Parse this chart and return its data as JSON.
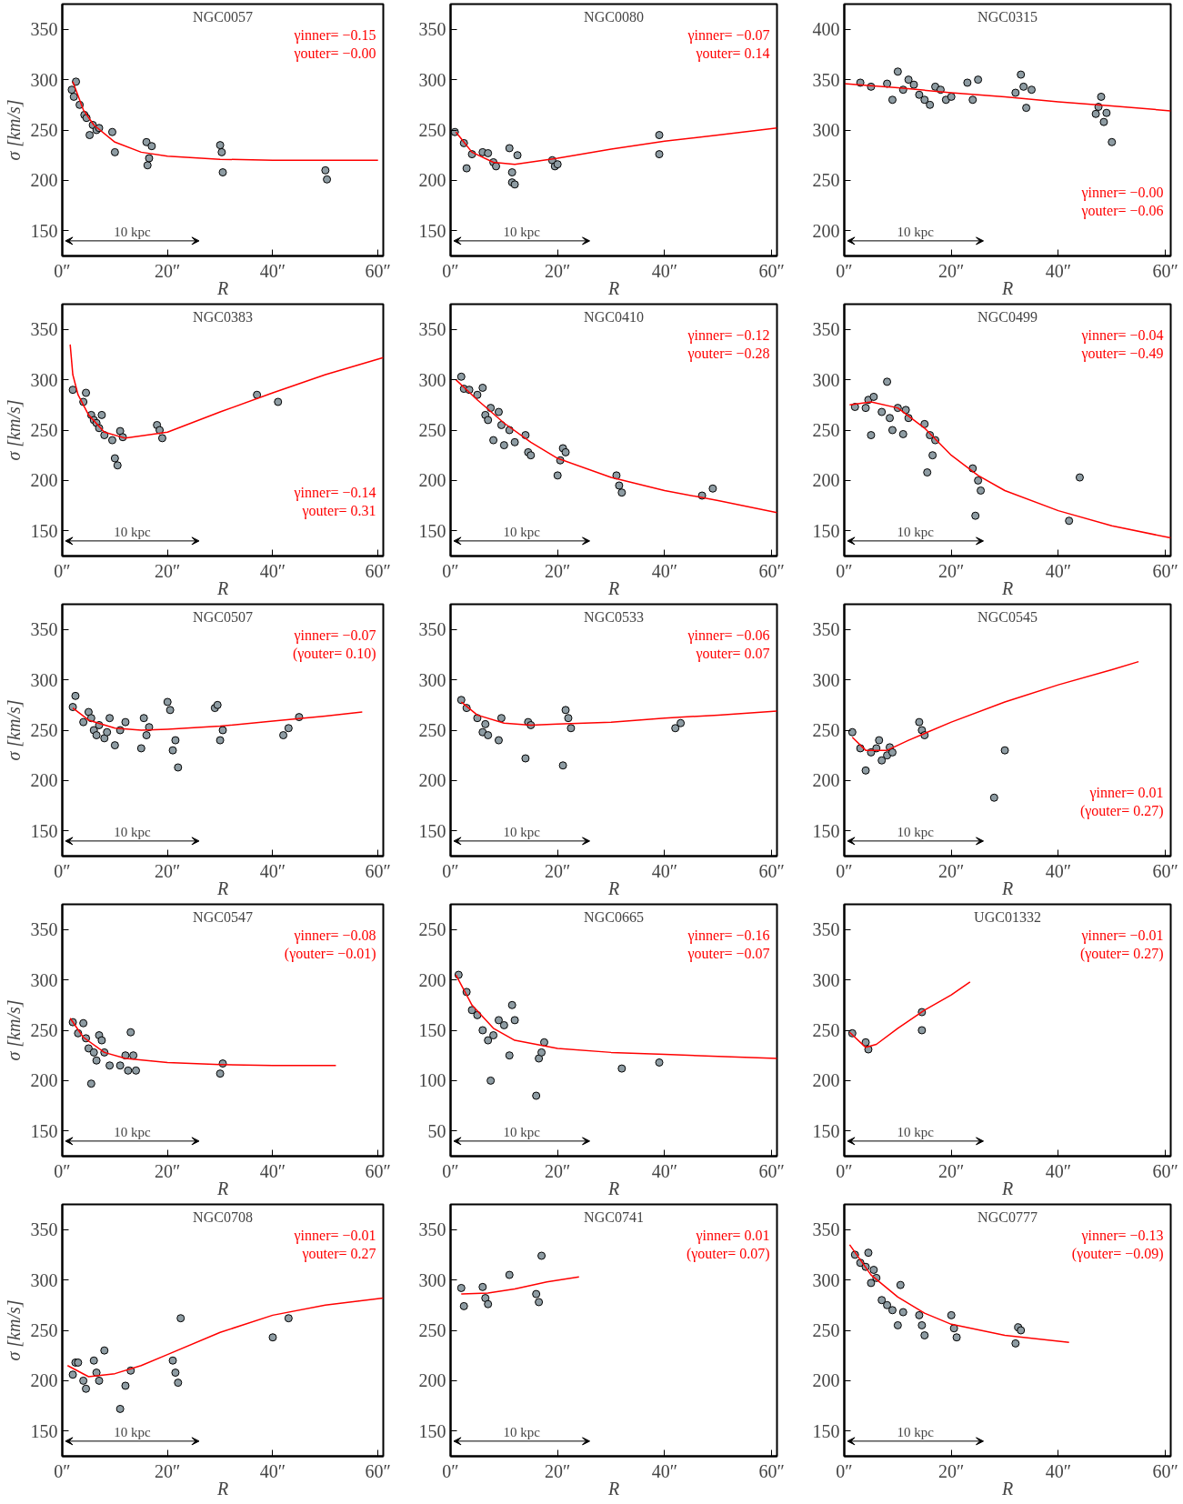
{
  "chart_data": [
    {
      "type": "scatter",
      "title": "NGC0057",
      "xlabel": "R",
      "ylabel": "σ [km/s]",
      "xlim": [
        0,
        61
      ],
      "ylim": [
        125,
        375
      ],
      "xticks": [
        {
          "value": 0,
          "label": "0″"
        },
        {
          "value": 20,
          "label": "20″"
        },
        {
          "value": 40,
          "label": "40″"
        },
        {
          "value": 60,
          "label": "60″"
        }
      ],
      "yticks": [
        150,
        200,
        250,
        300,
        350
      ],
      "grid": false,
      "series": [
        {
          "marker": "circle",
          "color": "#8e9ca3",
          "x": [
            1.8,
            2.2,
            2.6,
            3.3,
            4.2,
            4.6,
            5.2,
            5.8,
            6.5,
            7,
            9.5,
            10,
            16,
            16.2,
            16.5,
            17,
            30,
            30.3,
            30.5,
            50,
            50.3
          ],
          "values": [
            290,
            283,
            298,
            275,
            265,
            262,
            245,
            255,
            250,
            252,
            248,
            228,
            238,
            215,
            222,
            234,
            235,
            228,
            208,
            210,
            201
          ]
        },
        {
          "type": "line",
          "color": "#ff0000",
          "x": [
            2,
            4,
            6,
            10,
            15,
            20,
            30,
            40,
            60
          ],
          "values": [
            298,
            270,
            255,
            238,
            228,
            224,
            221,
            220,
            220
          ]
        }
      ],
      "annotations": [
        "γinner= −0.15",
        "γouter= −0.00",
        "10 kpc"
      ]
    },
    {
      "type": "scatter",
      "title": "NGC0080",
      "xlim": [
        0,
        61
      ],
      "ylim": [
        125,
        375
      ],
      "xlabel": "R",
      "xticks": [
        {
          "value": 0,
          "label": "0″"
        },
        {
          "value": 20,
          "label": "20″"
        },
        {
          "value": 40,
          "label": "40″"
        },
        {
          "value": 60,
          "label": "60″"
        }
      ],
      "yticks": [
        150,
        200,
        250,
        300,
        350
      ],
      "grid": false,
      "series": [
        {
          "marker": "circle",
          "color": "#8e9ca3",
          "x": [
            0.8,
            2.5,
            3,
            4,
            6,
            7,
            8,
            8.5,
            11,
            11.5,
            11.5,
            12,
            12.5,
            19,
            19.5,
            20,
            39,
            39
          ],
          "values": [
            248,
            237,
            212,
            226,
            228,
            227,
            218,
            214,
            232,
            208,
            198,
            196,
            225,
            220,
            214,
            216,
            245,
            226
          ]
        },
        {
          "type": "line",
          "color": "#ff0000",
          "x": [
            1,
            4,
            8,
            12,
            20,
            30,
            40,
            50,
            61
          ],
          "values": [
            248,
            228,
            218,
            216,
            222,
            231,
            239,
            245,
            252
          ]
        }
      ],
      "annotations": [
        "γinner= −0.07",
        "γouter= 0.14",
        "10 kpc"
      ]
    },
    {
      "type": "scatter",
      "title": "NGC0315",
      "xlim": [
        0,
        61
      ],
      "ylim": [
        175,
        425
      ],
      "xlabel": "R",
      "xticks": [
        {
          "value": 0,
          "label": "0″"
        },
        {
          "value": 20,
          "label": "20″"
        },
        {
          "value": 40,
          "label": "40″"
        },
        {
          "value": 60,
          "label": "60″"
        }
      ],
      "yticks": [
        200,
        250,
        300,
        350,
        400
      ],
      "grid": false,
      "series": [
        {
          "marker": "circle",
          "color": "#8e9ca3",
          "x": [
            3,
            5,
            8,
            9,
            10,
            11,
            12,
            13,
            14,
            15,
            16,
            17,
            18,
            19,
            20,
            23,
            24,
            25,
            32,
            33,
            33.5,
            34,
            35,
            47,
            47.5,
            48,
            48.5,
            49,
            50
          ],
          "values": [
            347,
            343,
            346,
            330,
            358,
            340,
            350,
            345,
            335,
            330,
            325,
            343,
            340,
            330,
            333,
            347,
            330,
            350,
            337,
            355,
            343,
            322,
            340,
            316,
            323,
            333,
            308,
            317,
            288
          ]
        },
        {
          "type": "line",
          "color": "#ff0000",
          "x": [
            0,
            10,
            20,
            30,
            40,
            50,
            61
          ],
          "values": [
            346,
            342,
            337,
            333,
            328,
            324,
            319
          ]
        }
      ],
      "annotations": [
        "γinner= −0.00",
        "γouter= −0.06",
        "10 kpc"
      ]
    },
    {
      "type": "scatter",
      "title": "NGC0383",
      "xlabel": "R",
      "ylabel": "σ [km/s]",
      "xlim": [
        0,
        61
      ],
      "ylim": [
        125,
        375
      ],
      "xticks": [
        {
          "value": 0,
          "label": "0″"
        },
        {
          "value": 20,
          "label": "20″"
        },
        {
          "value": 40,
          "label": "40″"
        },
        {
          "value": 60,
          "label": "60″"
        }
      ],
      "yticks": [
        150,
        200,
        250,
        300,
        350
      ],
      "grid": false,
      "series": [
        {
          "marker": "circle",
          "color": "#8e9ca3",
          "x": [
            2,
            4,
            4.5,
            5.5,
            6,
            6.5,
            7,
            7.5,
            8,
            9.5,
            10,
            10.5,
            11,
            11.5,
            18,
            18.5,
            19,
            37,
            41
          ],
          "values": [
            290,
            278,
            287,
            265,
            260,
            257,
            252,
            265,
            245,
            240,
            222,
            215,
            249,
            243,
            255,
            250,
            242,
            285,
            278
          ]
        },
        {
          "type": "line",
          "color": "#ff0000",
          "x": [
            1.5,
            2,
            3,
            5,
            8,
            12,
            20,
            30,
            40,
            50,
            61
          ],
          "values": [
            335,
            305,
            285,
            265,
            248,
            242,
            248,
            268,
            287,
            305,
            322
          ]
        }
      ],
      "annotations": [
        "γinner= −0.14",
        "γouter= 0.31",
        "10 kpc"
      ]
    },
    {
      "type": "scatter",
      "title": "NGC0410",
      "xlabel": "R",
      "xlim": [
        0,
        61
      ],
      "ylim": [
        125,
        375
      ],
      "xticks": [
        {
          "value": 0,
          "label": "0″"
        },
        {
          "value": 20,
          "label": "20″"
        },
        {
          "value": 40,
          "label": "40″"
        },
        {
          "value": 60,
          "label": "60″"
        }
      ],
      "yticks": [
        150,
        200,
        250,
        300,
        350
      ],
      "grid": false,
      "series": [
        {
          "marker": "circle",
          "color": "#8e9ca3",
          "x": [
            2,
            2.5,
            3.5,
            5,
            6,
            6.5,
            7,
            7.5,
            8,
            9,
            9.5,
            10,
            11,
            12,
            14,
            14.5,
            15,
            20,
            20.5,
            21,
            21.5,
            31,
            31.5,
            32,
            47,
            49
          ],
          "values": [
            303,
            291,
            290,
            285,
            292,
            265,
            260,
            272,
            240,
            268,
            255,
            235,
            250,
            238,
            245,
            228,
            225,
            205,
            220,
            232,
            228,
            205,
            195,
            188,
            185,
            192
          ]
        },
        {
          "type": "line",
          "color": "#ff0000",
          "x": [
            1,
            5,
            10,
            15,
            20,
            30,
            40,
            50,
            61
          ],
          "values": [
            300,
            280,
            257,
            238,
            222,
            203,
            190,
            180,
            168
          ]
        }
      ],
      "annotations": [
        "γinner= −0.12",
        "γouter= −0.28",
        "10 kpc"
      ]
    },
    {
      "type": "scatter",
      "title": "NGC0499",
      "xlabel": "R",
      "xlim": [
        0,
        61
      ],
      "ylim": [
        125,
        375
      ],
      "xticks": [
        {
          "value": 0,
          "label": "0″"
        },
        {
          "value": 20,
          "label": "20″"
        },
        {
          "value": 40,
          "label": "40″"
        },
        {
          "value": 60,
          "label": "60″"
        }
      ],
      "yticks": [
        150,
        200,
        250,
        300,
        350
      ],
      "grid": false,
      "series": [
        {
          "marker": "circle",
          "color": "#8e9ca3",
          "x": [
            2,
            4,
            4.5,
            5,
            5.5,
            7,
            8,
            8.5,
            9,
            10,
            11,
            11.5,
            12,
            15,
            15.5,
            16,
            16.5,
            17,
            24,
            24.5,
            25,
            25.5,
            42,
            44
          ],
          "values": [
            273,
            272,
            280,
            245,
            283,
            268,
            298,
            262,
            250,
            272,
            246,
            270,
            262,
            256,
            208,
            245,
            225,
            240,
            212,
            165,
            200,
            190,
            160,
            203
          ]
        },
        {
          "type": "line",
          "color": "#ff0000",
          "x": [
            1,
            5,
            10,
            15,
            20,
            25,
            30,
            40,
            50,
            61
          ],
          "values": [
            275,
            278,
            272,
            252,
            225,
            205,
            190,
            170,
            155,
            143
          ]
        }
      ],
      "annotations": [
        "γinner= −0.04",
        "γouter= −0.49",
        "10 kpc"
      ]
    },
    {
      "type": "scatter",
      "title": "NGC0507",
      "xlabel": "R",
      "ylabel": "σ [km/s]",
      "xlim": [
        0,
        61
      ],
      "ylim": [
        125,
        375
      ],
      "xticks": [
        {
          "value": 0,
          "label": "0″"
        },
        {
          "value": 20,
          "label": "20″"
        },
        {
          "value": 40,
          "label": "40″"
        },
        {
          "value": 60,
          "label": "60″"
        }
      ],
      "yticks": [
        150,
        200,
        250,
        300,
        350
      ],
      "grid": false,
      "series": [
        {
          "marker": "circle",
          "color": "#8e9ca3",
          "x": [
            2,
            2.5,
            4,
            5,
            5.5,
            6,
            6.5,
            7,
            8,
            8.5,
            9,
            10,
            11,
            12,
            15,
            15.5,
            16,
            16.5,
            20,
            20.5,
            21,
            21.5,
            22,
            29,
            29.5,
            30,
            30.5,
            42,
            43,
            45
          ],
          "values": [
            273,
            284,
            258,
            268,
            262,
            250,
            245,
            255,
            242,
            248,
            262,
            235,
            250,
            258,
            232,
            262,
            245,
            253,
            278,
            270,
            230,
            240,
            213,
            272,
            275,
            240,
            250,
            245,
            252,
            263
          ]
        },
        {
          "type": "line",
          "color": "#ff0000",
          "x": [
            2,
            5,
            10,
            15,
            20,
            30,
            40,
            50,
            57
          ],
          "values": [
            272,
            260,
            252,
            250,
            251,
            254,
            259,
            264,
            268
          ]
        }
      ],
      "annotations": [
        "γinner= −0.07",
        "(γouter= 0.10)",
        "10 kpc"
      ]
    },
    {
      "type": "scatter",
      "title": "NGC0533",
      "xlabel": "R",
      "xlim": [
        0,
        61
      ],
      "ylim": [
        125,
        375
      ],
      "xticks": [
        {
          "value": 0,
          "label": "0″"
        },
        {
          "value": 20,
          "label": "20″"
        },
        {
          "value": 40,
          "label": "40″"
        },
        {
          "value": 60,
          "label": "60″"
        }
      ],
      "yticks": [
        150,
        200,
        250,
        300,
        350
      ],
      "grid": false,
      "series": [
        {
          "marker": "circle",
          "color": "#8e9ca3",
          "x": [
            2,
            3,
            5,
            6,
            6.5,
            7,
            9,
            9.5,
            14,
            14.5,
            15,
            21,
            21.5,
            22,
            22.5,
            42,
            43
          ],
          "values": [
            280,
            272,
            262,
            248,
            256,
            245,
            240,
            262,
            222,
            258,
            255,
            215,
            270,
            262,
            252,
            252,
            257
          ]
        },
        {
          "type": "line",
          "color": "#ff0000",
          "x": [
            2,
            5,
            10,
            15,
            20,
            30,
            40,
            50,
            61
          ],
          "values": [
            278,
            265,
            257,
            255,
            256,
            258,
            262,
            265,
            269
          ]
        }
      ],
      "annotations": [
        "γinner= −0.06",
        "γouter= 0.07",
        "10 kpc"
      ]
    },
    {
      "type": "scatter",
      "title": "NGC0545",
      "xlabel": "R",
      "xlim": [
        0,
        61
      ],
      "ylim": [
        125,
        375
      ],
      "xticks": [
        {
          "value": 0,
          "label": "0″"
        },
        {
          "value": 20,
          "label": "20″"
        },
        {
          "value": 40,
          "label": "40″"
        },
        {
          "value": 60,
          "label": "60″"
        }
      ],
      "yticks": [
        150,
        200,
        250,
        300,
        350
      ],
      "grid": false,
      "series": [
        {
          "marker": "circle",
          "color": "#8e9ca3",
          "x": [
            1.5,
            3,
            4,
            5,
            6,
            6.5,
            7,
            8,
            8.5,
            9,
            14,
            14.5,
            15,
            28,
            30
          ],
          "values": [
            248,
            232,
            210,
            228,
            232,
            240,
            220,
            225,
            233,
            228,
            258,
            250,
            245,
            183,
            230
          ]
        },
        {
          "type": "line",
          "color": "#ff0000",
          "x": [
            1.5,
            4,
            8,
            12,
            20,
            30,
            40,
            50,
            55
          ],
          "values": [
            243,
            230,
            230,
            240,
            258,
            278,
            295,
            310,
            318
          ]
        }
      ],
      "annotations": [
        "γinner= 0.01",
        "(γouter= 0.27)",
        "10 kpc"
      ]
    },
    {
      "type": "scatter",
      "title": "NGC0547",
      "xlabel": "R",
      "ylabel": "σ [km/s]",
      "xlim": [
        0,
        61
      ],
      "ylim": [
        125,
        375
      ],
      "xticks": [
        {
          "value": 0,
          "label": "0″"
        },
        {
          "value": 20,
          "label": "20″"
        },
        {
          "value": 40,
          "label": "40″"
        },
        {
          "value": 60,
          "label": "60″"
        }
      ],
      "yticks": [
        150,
        200,
        250,
        300,
        350
      ],
      "grid": false,
      "series": [
        {
          "marker": "circle",
          "color": "#8e9ca3",
          "x": [
            2,
            3,
            4,
            4.5,
            5,
            5.5,
            6,
            6.5,
            7,
            7.5,
            8,
            9,
            11,
            12,
            12.5,
            13,
            13.5,
            14,
            30,
            30.5
          ],
          "values": [
            258,
            247,
            257,
            242,
            232,
            197,
            228,
            220,
            245,
            240,
            228,
            215,
            215,
            225,
            210,
            248,
            225,
            210,
            207,
            217
          ]
        },
        {
          "type": "line",
          "color": "#ff0000",
          "x": [
            1.5,
            4,
            8,
            12,
            20,
            30,
            40,
            52
          ],
          "values": [
            262,
            243,
            228,
            222,
            218,
            216,
            215,
            215
          ]
        }
      ],
      "annotations": [
        "γinner= −0.08",
        "(γouter= −0.01)",
        "10 kpc"
      ]
    },
    {
      "type": "scatter",
      "title": "NGC0665",
      "xlabel": "R",
      "xlim": [
        0,
        61
      ],
      "ylim": [
        25,
        275
      ],
      "xticks": [
        {
          "value": 0,
          "label": "0″"
        },
        {
          "value": 20,
          "label": "20″"
        },
        {
          "value": 40,
          "label": "40″"
        },
        {
          "value": 60,
          "label": "60″"
        }
      ],
      "yticks": [
        50,
        100,
        150,
        200,
        250
      ],
      "grid": false,
      "series": [
        {
          "marker": "circle",
          "color": "#8e9ca3",
          "x": [
            1.5,
            3,
            4,
            5,
            6,
            7,
            7.5,
            8,
            9,
            10,
            11,
            11.5,
            12,
            16,
            16.5,
            17,
            17.5,
            32,
            39
          ],
          "values": [
            205,
            188,
            170,
            165,
            150,
            140,
            100,
            145,
            160,
            155,
            125,
            175,
            160,
            85,
            122,
            128,
            138,
            112,
            118
          ]
        },
        {
          "type": "line",
          "color": "#ff0000",
          "x": [
            1,
            4,
            8,
            12,
            20,
            30,
            40,
            50,
            61
          ],
          "values": [
            205,
            175,
            152,
            140,
            132,
            128,
            126,
            124,
            122
          ]
        }
      ],
      "annotations": [
        "γinner= −0.16",
        "γouter= −0.07",
        "10 kpc"
      ]
    },
    {
      "type": "scatter",
      "title": "UGC01332",
      "xlabel": "R",
      "xlim": [
        0,
        61
      ],
      "ylim": [
        125,
        375
      ],
      "xticks": [
        {
          "value": 0,
          "label": "0″"
        },
        {
          "value": 20,
          "label": "20″"
        },
        {
          "value": 40,
          "label": "40″"
        },
        {
          "value": 60,
          "label": "60″"
        }
      ],
      "yticks": [
        150,
        200,
        250,
        300,
        350
      ],
      "grid": false,
      "series": [
        {
          "marker": "circle",
          "color": "#8e9ca3",
          "x": [
            1.5,
            4,
            4.5,
            14.5,
            14.5
          ],
          "values": [
            247,
            238,
            231,
            268,
            250
          ]
        },
        {
          "type": "line",
          "color": "#ff0000",
          "x": [
            1,
            4,
            6,
            10,
            15,
            20,
            23.5
          ],
          "values": [
            248,
            233,
            236,
            252,
            270,
            285,
            298
          ]
        }
      ],
      "annotations": [
        "γinner= −0.01",
        "(γouter= 0.27)",
        "10 kpc"
      ]
    },
    {
      "type": "scatter",
      "title": "NGC0708",
      "xlabel": "R",
      "ylabel": "σ [km/s]",
      "xlim": [
        0,
        61
      ],
      "ylim": [
        125,
        375
      ],
      "xticks": [
        {
          "value": 0,
          "label": "0″"
        },
        {
          "value": 20,
          "label": "20″"
        },
        {
          "value": 40,
          "label": "40″"
        },
        {
          "value": 60,
          "label": "60″"
        }
      ],
      "yticks": [
        150,
        200,
        250,
        300,
        350
      ],
      "grid": false,
      "series": [
        {
          "marker": "circle",
          "color": "#8e9ca3",
          "x": [
            2,
            2.5,
            3,
            4,
            4.5,
            6,
            6.5,
            7,
            8,
            11,
            12,
            13,
            21,
            21.5,
            22,
            22.5,
            40,
            43
          ],
          "values": [
            206,
            218,
            218,
            200,
            192,
            220,
            208,
            200,
            230,
            172,
            195,
            210,
            220,
            208,
            198,
            262,
            243,
            262
          ]
        },
        {
          "type": "line",
          "color": "#ff0000",
          "x": [
            1,
            5,
            10,
            15,
            20,
            30,
            40,
            50,
            61
          ],
          "values": [
            215,
            204,
            207,
            215,
            226,
            248,
            265,
            275,
            282
          ]
        }
      ],
      "annotations": [
        "γinner= −0.01",
        "γouter= 0.27",
        "10 kpc"
      ]
    },
    {
      "type": "scatter",
      "title": "NGC0741",
      "xlabel": "R",
      "xlim": [
        0,
        61
      ],
      "ylim": [
        125,
        375
      ],
      "xticks": [
        {
          "value": 0,
          "label": "0″"
        },
        {
          "value": 20,
          "label": "20″"
        },
        {
          "value": 40,
          "label": "40″"
        },
        {
          "value": 60,
          "label": "60″"
        }
      ],
      "yticks": [
        150,
        200,
        250,
        300,
        350
      ],
      "grid": false,
      "series": [
        {
          "marker": "circle",
          "color": "#8e9ca3",
          "x": [
            2,
            2.5,
            6,
            6.5,
            7,
            11,
            16,
            16.5,
            17
          ],
          "values": [
            292,
            274,
            293,
            282,
            276,
            305,
            286,
            278,
            324
          ]
        },
        {
          "type": "line",
          "color": "#ff0000",
          "x": [
            2,
            7,
            12,
            18,
            24
          ],
          "values": [
            286,
            287,
            291,
            298,
            303
          ]
        }
      ],
      "annotations": [
        "γinner= 0.01",
        "(γouter= 0.07)",
        "10 kpc"
      ]
    },
    {
      "type": "scatter",
      "title": "NGC0777",
      "xlabel": "R",
      "xlim": [
        0,
        61
      ],
      "ylim": [
        125,
        375
      ],
      "xticks": [
        {
          "value": 0,
          "label": "0″"
        },
        {
          "value": 20,
          "label": "20″"
        },
        {
          "value": 40,
          "label": "40″"
        },
        {
          "value": 60,
          "label": "60″"
        }
      ],
      "yticks": [
        150,
        200,
        250,
        300,
        350
      ],
      "grid": false,
      "series": [
        {
          "marker": "circle",
          "color": "#8e9ca3",
          "x": [
            2,
            3,
            4,
            4.5,
            5,
            5.5,
            6,
            7,
            8,
            9,
            10,
            10.5,
            11,
            14,
            14.5,
            15,
            20,
            20.5,
            21,
            32,
            32.5,
            33
          ],
          "values": [
            325,
            317,
            313,
            327,
            297,
            310,
            302,
            280,
            275,
            270,
            255,
            295,
            268,
            265,
            255,
            245,
            265,
            252,
            243,
            237,
            253,
            250
          ]
        },
        {
          "type": "line",
          "color": "#ff0000",
          "x": [
            1,
            5,
            10,
            15,
            20,
            30,
            42
          ],
          "values": [
            335,
            305,
            283,
            267,
            256,
            245,
            238
          ]
        }
      ],
      "annotations": [
        "γinner= −0.13",
        "(γouter= −0.09)",
        "10 kpc"
      ]
    }
  ]
}
